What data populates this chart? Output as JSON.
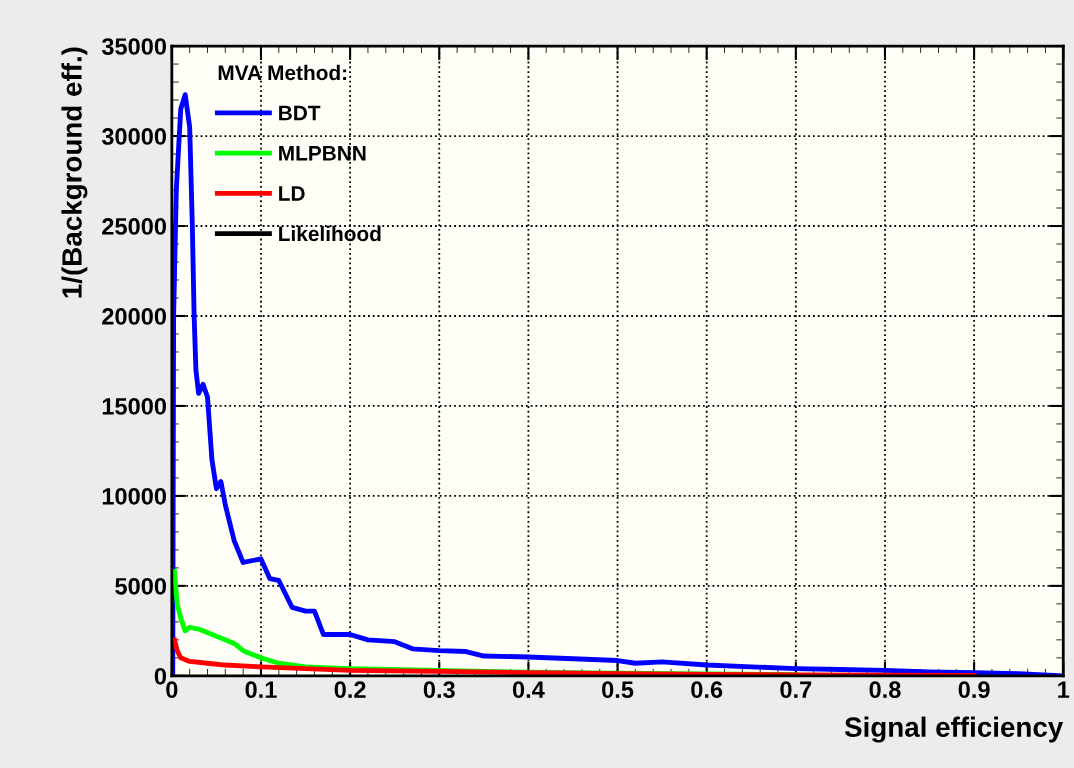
{
  "chart_data": {
    "type": "line",
    "xlabel": "Signal efficiency",
    "ylabel": "1/(Background eff.)",
    "legend_title": "MVA Method:",
    "legend": "top left",
    "grid": true,
    "line_style": "solid",
    "marker": "none",
    "xlim": [
      0,
      1
    ],
    "ylim": [
      0,
      35000
    ],
    "xticks": [
      0,
      0.1,
      0.2,
      0.3,
      0.4,
      0.5,
      0.6,
      0.7,
      0.8,
      0.9,
      1
    ],
    "yticks": [
      0,
      5000,
      10000,
      15000,
      20000,
      25000,
      30000,
      35000
    ],
    "series": [
      {
        "name": "BDT",
        "color": "#0000ff",
        "x": [
          0.001,
          0.002,
          0.005,
          0.01,
          0.015,
          0.02,
          0.023,
          0.025,
          0.027,
          0.03,
          0.035,
          0.04,
          0.045,
          0.05,
          0.055,
          0.06,
          0.07,
          0.08,
          0.1,
          0.11,
          0.12,
          0.135,
          0.15,
          0.16,
          0.17,
          0.2,
          0.22,
          0.25,
          0.27,
          0.3,
          0.33,
          0.35,
          0.4,
          0.45,
          0.5,
          0.52,
          0.55,
          0.6,
          0.65,
          0.7,
          0.75,
          0.8,
          0.85,
          0.9,
          0.95,
          1.0
        ],
        "values": [
          0,
          20000,
          27000,
          31500,
          32300,
          30500,
          25000,
          20000,
          17000,
          15700,
          16200,
          15500,
          12000,
          10400,
          10800,
          9500,
          7500,
          6300,
          6500,
          5400,
          5300,
          3800,
          3600,
          3600,
          2300,
          2300,
          2000,
          1900,
          1500,
          1400,
          1350,
          1100,
          1050,
          950,
          850,
          700,
          780,
          600,
          500,
          400,
          350,
          300,
          220,
          180,
          120,
          0
        ]
      },
      {
        "name": "MLPBNN",
        "color": "#00ff00",
        "x": [
          0.003,
          0.006,
          0.01,
          0.015,
          0.02,
          0.03,
          0.05,
          0.07,
          0.08,
          0.1,
          0.12,
          0.15,
          0.2,
          0.3,
          0.4,
          0.5,
          0.6,
          0.7
        ],
        "values": [
          5800,
          4000,
          3200,
          2500,
          2700,
          2600,
          2200,
          1800,
          1400,
          1000,
          700,
          500,
          400,
          300,
          200,
          150,
          100,
          70
        ]
      },
      {
        "name": "LD",
        "color": "#ff0000",
        "x": [
          0.003,
          0.006,
          0.01,
          0.02,
          0.04,
          0.06,
          0.1,
          0.15,
          0.2,
          0.3,
          0.4,
          0.5,
          0.6,
          0.7,
          0.8,
          0.9
        ],
        "values": [
          2000,
          1400,
          1000,
          800,
          700,
          600,
          500,
          400,
          300,
          250,
          180,
          120,
          80,
          50,
          30,
          20
        ]
      },
      {
        "name": "Likelihood",
        "color": "#000000"
      }
    ]
  }
}
